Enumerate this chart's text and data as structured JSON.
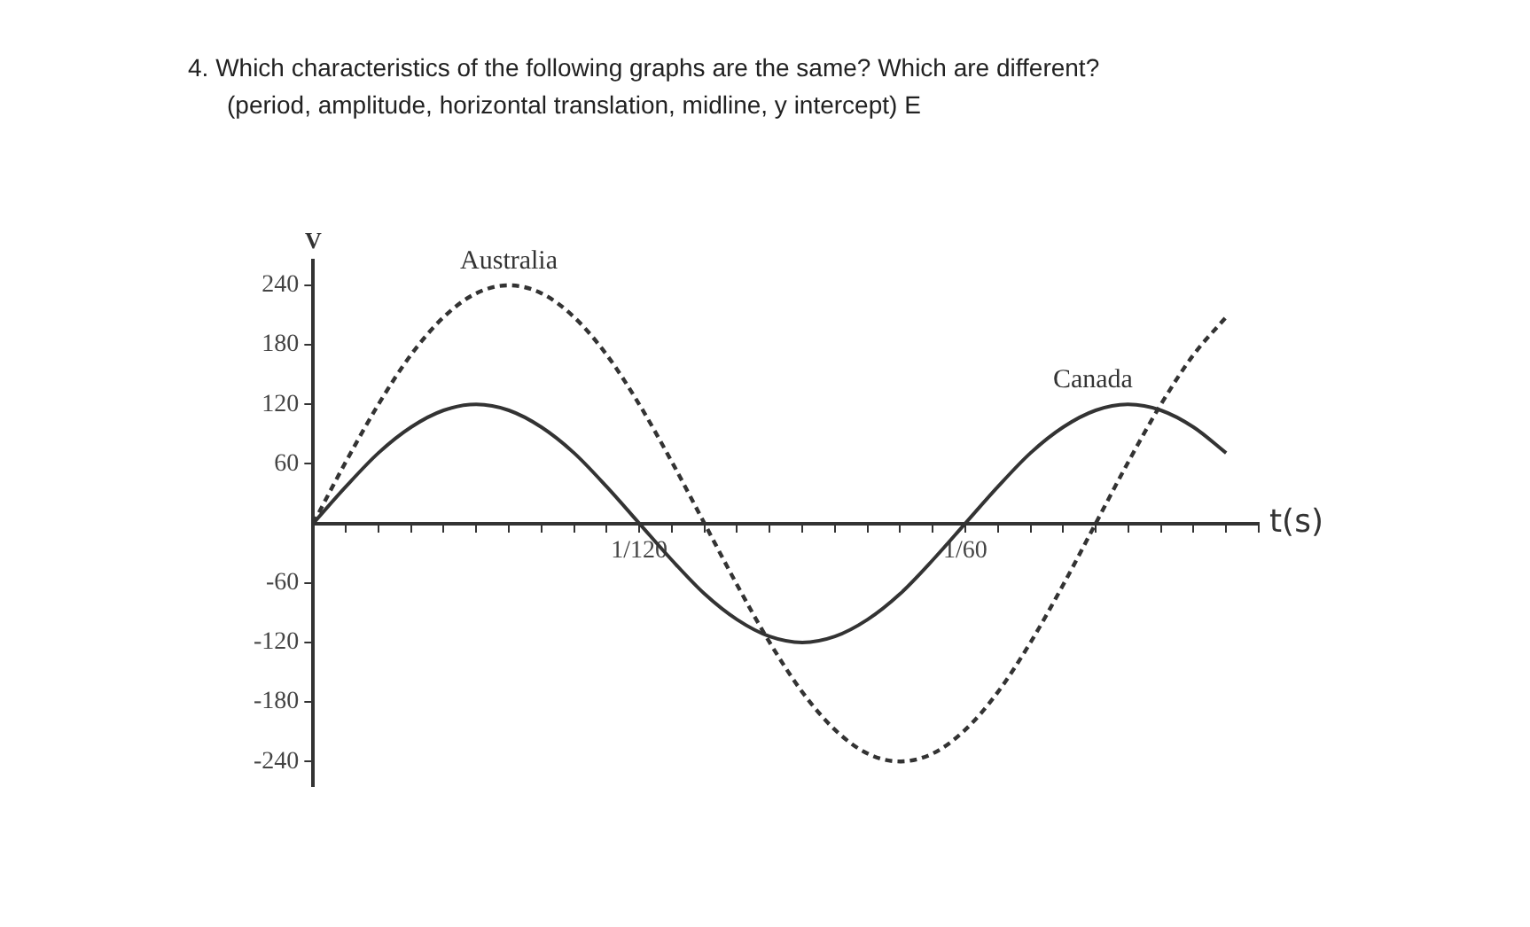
{
  "chart_data": {
    "type": "line",
    "title": "4. Which characteristics of the following graphs are the same?  Which are different?",
    "subtitle": "(period, amplitude, horizontal translation, midline, y intercept)  E",
    "xlabel": "t(s)",
    "ylabel": "V",
    "categories": [
      null,
      null,
      null,
      null,
      null,
      null,
      null,
      null,
      null,
      null,
      "1/120",
      null,
      null,
      null,
      null,
      null,
      null,
      null,
      null,
      null,
      "1/60",
      null,
      null,
      null,
      null,
      null,
      null,
      null,
      null,
      null
    ],
    "series": [
      {
        "name": "Australia",
        "color": "#333333",
        "line_style": "dashed",
        "values": [
          0,
          62,
          120,
          170,
          208,
          232,
          240,
          232,
          208,
          170,
          120,
          62,
          0,
          -62,
          -120,
          -170,
          -208,
          -232,
          -240,
          -232,
          -208,
          -170,
          -120,
          -62,
          0,
          62,
          120,
          170,
          208,
          null
        ]
      },
      {
        "name": "Canada",
        "color": "#333333",
        "line_style": "solid",
        "values": [
          0,
          37,
          71,
          97,
          114,
          120,
          114,
          97,
          71,
          37,
          0,
          -37,
          -71,
          -97,
          -114,
          -120,
          -114,
          -97,
          -71,
          -37,
          0,
          37,
          71,
          97,
          114,
          120,
          114,
          97,
          71,
          null
        ]
      }
    ],
    "ylim": [
      -265,
      265
    ],
    "yticks": [
      -240,
      -180,
      -120,
      -60,
      60,
      120,
      180,
      240
    ],
    "grid": false,
    "legend": false,
    "marker": "none"
  }
}
